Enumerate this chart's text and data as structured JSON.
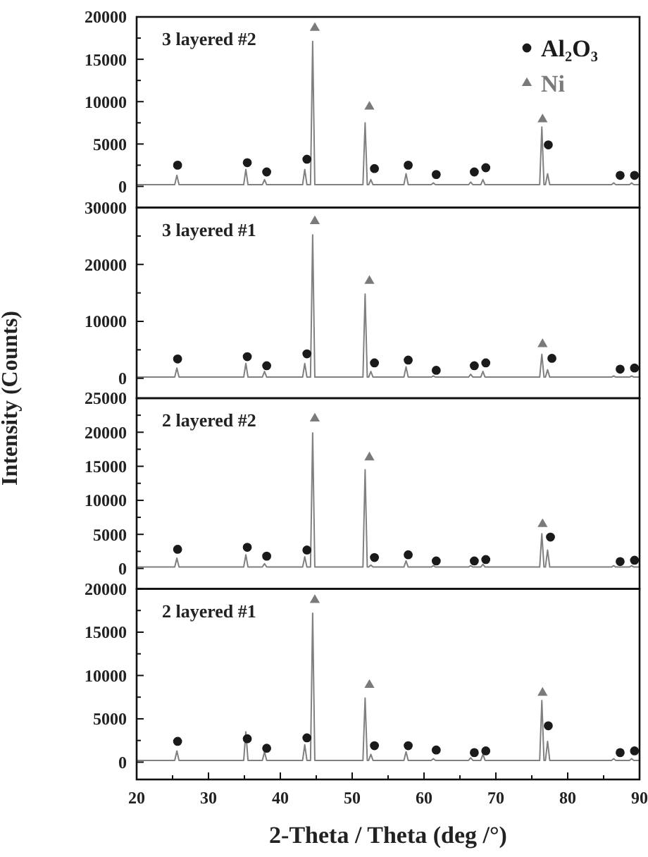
{
  "chart_data": [
    {
      "type": "line",
      "title": "3 layered #2",
      "xlim": [
        20,
        90
      ],
      "ylim": [
        -2500,
        20000
      ],
      "yticks": [
        0,
        {
          "value": 2500,
          "label": null
        },
        5000,
        {
          "value": 7500,
          "label": null
        },
        10000,
        {
          "value": 12500,
          "label": null
        },
        15000,
        {
          "value": 17500,
          "label": null
        },
        20000
      ],
      "tick_labels": "y",
      "legend": "top right",
      "series": [
        {
          "type": "line",
          "color": "#808080",
          "x": [
            20,
            25.3,
            25.6,
            25.9,
            34.9,
            35.2,
            35.5,
            37.5,
            37.8,
            38.1,
            43.1,
            43.4,
            43.7,
            44.2,
            44.5,
            44.8,
            51.5,
            51.8,
            52.1,
            52.3,
            52.6,
            52.9,
            57.2,
            57.5,
            57.8,
            61,
            61.3,
            61.6,
            66.2,
            66.5,
            66.8,
            67.9,
            68.2,
            68.5,
            76.1,
            76.4,
            76.7,
            76.9,
            77.2,
            77.5,
            86.1,
            86.4,
            86.7,
            88.6,
            88.9,
            89.2,
            90
          ],
          "values": [
            200,
            200,
            1300,
            200,
            200,
            2000,
            200,
            200,
            800,
            200,
            200,
            2000,
            200,
            200,
            17100,
            200,
            200,
            7500,
            200,
            200,
            800,
            200,
            200,
            1500,
            200,
            200,
            400,
            200,
            200,
            500,
            200,
            200,
            800,
            200,
            200,
            7000,
            200,
            200,
            1500,
            200,
            200,
            400,
            200,
            200,
            400,
            200,
            200
          ]
        },
        {
          "type": "scatter",
          "name": "Al₂O₃",
          "color": "#1a1a1a",
          "marker": "circle",
          "x": [
            25.7,
            35.4,
            38.1,
            43.7,
            53.1,
            57.8,
            61.7,
            67.0,
            68.6,
            77.3,
            87.3,
            89.3
          ],
          "values": [
            2500,
            2800,
            1700,
            3200,
            2100,
            2500,
            1400,
            1700,
            2200,
            4900,
            1300,
            1300
          ]
        },
        {
          "type": "scatter",
          "name": "Ni",
          "color": "#7a7a7a",
          "marker": "triangle",
          "x": [
            44.8,
            52.4,
            76.5
          ],
          "values": [
            18700,
            9400,
            7900
          ]
        }
      ]
    },
    {
      "type": "line",
      "title": "3 layered #1",
      "ylabel": "Intensity (Counts)",
      "xlim": [
        20,
        90
      ],
      "ylim": [
        -3500,
        30000
      ],
      "yticks": [
        0,
        {
          "value": 5000,
          "label": null
        },
        10000,
        {
          "value": 15000,
          "label": null
        },
        20000,
        {
          "value": 25000,
          "label": null
        },
        30000
      ],
      "tick_labels": "y",
      "series": [
        {
          "type": "line",
          "color": "#808080",
          "x": [
            20,
            25.3,
            25.6,
            25.9,
            34.9,
            35.2,
            35.5,
            37.5,
            37.8,
            38.1,
            43.1,
            43.4,
            43.7,
            44.2,
            44.5,
            44.8,
            51.5,
            51.8,
            52.1,
            52.3,
            52.6,
            52.9,
            57.2,
            57.5,
            57.8,
            61,
            61.3,
            61.6,
            66.2,
            66.5,
            66.8,
            67.9,
            68.2,
            68.5,
            76.1,
            76.4,
            76.7,
            76.9,
            77.2,
            77.5,
            86.1,
            86.4,
            86.7,
            88.6,
            88.9,
            89.2,
            90
          ],
          "values": [
            200,
            200,
            1800,
            200,
            200,
            2600,
            200,
            200,
            1200,
            200,
            200,
            2600,
            200,
            200,
            25200,
            200,
            200,
            14800,
            200,
            200,
            1200,
            200,
            200,
            2000,
            200,
            200,
            400,
            200,
            200,
            700,
            200,
            200,
            1200,
            200,
            200,
            4200,
            200,
            200,
            1500,
            200,
            200,
            400,
            200,
            200,
            400,
            200,
            200
          ]
        },
        {
          "type": "scatter",
          "color": "#1a1a1a",
          "marker": "circle",
          "x": [
            25.7,
            35.4,
            38.1,
            43.7,
            53.1,
            57.8,
            61.7,
            67.0,
            68.6,
            77.8,
            87.3,
            89.3
          ],
          "values": [
            3400,
            3800,
            2200,
            4300,
            2700,
            3200,
            1400,
            2200,
            2700,
            3500,
            1600,
            1800
          ]
        },
        {
          "type": "scatter",
          "color": "#7a7a7a",
          "marker": "triangle",
          "x": [
            44.8,
            52.4,
            76.5
          ],
          "values": [
            27600,
            17100,
            6000
          ]
        }
      ]
    },
    {
      "type": "line",
      "title": "2 layered #2",
      "xlim": [
        20,
        90
      ],
      "ylim": [
        -3000,
        25000
      ],
      "yticks": [
        0,
        {
          "value": 2500,
          "label": null
        },
        5000,
        {
          "value": 7500,
          "label": null
        },
        10000,
        {
          "value": 12500,
          "label": null
        },
        15000,
        {
          "value": 17500,
          "label": null
        },
        20000,
        {
          "value": 22500,
          "label": null
        },
        25000
      ],
      "tick_labels": "y",
      "series": [
        {
          "type": "line",
          "color": "#808080",
          "x": [
            20,
            25.3,
            25.6,
            25.9,
            34.9,
            35.2,
            35.5,
            37.5,
            37.8,
            38.1,
            43.1,
            43.4,
            43.7,
            44.2,
            44.5,
            44.8,
            51.5,
            51.8,
            52.1,
            52.3,
            52.6,
            52.9,
            57.2,
            57.5,
            57.8,
            61,
            61.3,
            61.6,
            66.2,
            66.5,
            66.8,
            67.9,
            68.2,
            68.5,
            76.1,
            76.4,
            76.7,
            76.9,
            77.2,
            77.5,
            86.1,
            86.4,
            86.7,
            88.6,
            88.9,
            89.2,
            90
          ],
          "values": [
            200,
            200,
            1500,
            200,
            200,
            2000,
            200,
            200,
            700,
            200,
            200,
            1700,
            200,
            200,
            19900,
            200,
            200,
            14500,
            200,
            200,
            500,
            200,
            200,
            1100,
            200,
            200,
            400,
            200,
            200,
            400,
            200,
            200,
            600,
            200,
            200,
            5100,
            200,
            200,
            2700,
            200,
            200,
            400,
            200,
            200,
            400,
            200,
            200
          ]
        },
        {
          "type": "scatter",
          "color": "#1a1a1a",
          "marker": "circle",
          "x": [
            25.7,
            35.4,
            38.1,
            43.7,
            53.1,
            57.8,
            61.7,
            67.0,
            68.6,
            77.6,
            87.3,
            89.3
          ],
          "values": [
            2800,
            3100,
            1800,
            2700,
            1600,
            2000,
            1100,
            1100,
            1300,
            4600,
            1000,
            1200
          ]
        },
        {
          "type": "scatter",
          "color": "#7a7a7a",
          "marker": "triangle",
          "x": [
            44.8,
            52.4,
            76.5
          ],
          "values": [
            22000,
            16300,
            6500
          ]
        }
      ]
    },
    {
      "type": "line",
      "title": "2 layered #1",
      "xlabel": "2-Theta / Theta (deg /°)",
      "xlim": [
        20,
        90
      ],
      "xticks": [
        20,
        {
          "value": 25,
          "label": null
        },
        30,
        {
          "value": 35,
          "label": null
        },
        40,
        {
          "value": 45,
          "label": null
        },
        50,
        {
          "value": 55,
          "label": null
        },
        60,
        {
          "value": 65,
          "label": null
        },
        70,
        {
          "value": 75,
          "label": null
        },
        80,
        {
          "value": 85,
          "label": null
        },
        90
      ],
      "ylim": [
        -2000,
        20000
      ],
      "yticks": [
        0,
        {
          "value": 2500,
          "label": null
        },
        5000,
        {
          "value": 7500,
          "label": null
        },
        10000,
        {
          "value": 12500,
          "label": null
        },
        15000,
        {
          "value": 17500,
          "label": null
        },
        20000
      ],
      "series": [
        {
          "type": "line",
          "color": "#808080",
          "x": [
            20,
            25.3,
            25.6,
            25.9,
            34.9,
            35.2,
            35.5,
            37.5,
            37.8,
            38.1,
            43.1,
            43.4,
            43.7,
            44.2,
            44.5,
            44.8,
            51.5,
            51.8,
            52.1,
            52.3,
            52.6,
            52.9,
            57.2,
            57.5,
            57.8,
            61,
            61.3,
            61.6,
            66.2,
            66.5,
            66.8,
            67.9,
            68.2,
            68.5,
            76.1,
            76.4,
            76.7,
            76.9,
            77.2,
            77.5,
            86.1,
            86.4,
            86.7,
            88.6,
            88.9,
            89.2,
            90
          ],
          "values": [
            200,
            200,
            1300,
            200,
            200,
            3500,
            200,
            200,
            1200,
            200,
            200,
            2000,
            200,
            200,
            17200,
            200,
            200,
            7400,
            200,
            200,
            900,
            200,
            200,
            1200,
            200,
            200,
            400,
            200,
            200,
            500,
            200,
            200,
            900,
            200,
            200,
            7100,
            200,
            200,
            2400,
            200,
            200,
            400,
            200,
            200,
            400,
            200,
            200
          ]
        },
        {
          "type": "scatter",
          "color": "#1a1a1a",
          "marker": "circle",
          "x": [
            25.7,
            35.4,
            38.1,
            43.7,
            53.1,
            57.8,
            61.7,
            67.0,
            68.6,
            77.3,
            87.3,
            89.3
          ],
          "values": [
            2400,
            2700,
            1600,
            2800,
            1900,
            1900,
            1400,
            1100,
            1300,
            4200,
            1100,
            1300
          ]
        },
        {
          "type": "scatter",
          "color": "#7a7a7a",
          "marker": "triangle",
          "x": [
            44.8,
            52.4,
            76.5
          ],
          "values": [
            18700,
            8900,
            8000
          ]
        }
      ]
    }
  ]
}
